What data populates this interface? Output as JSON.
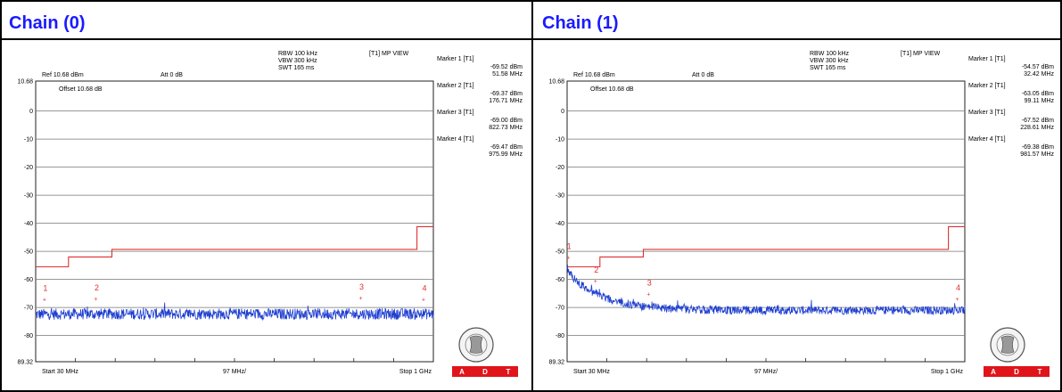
{
  "panels": [
    {
      "title": "Chain (0)",
      "chart_data": {
        "type": "line",
        "header": {
          "ref": "Ref 10.68 dBm",
          "att": "Att  0 dB",
          "rbw": "RBW 100 kHz",
          "vbw": "VBW 300 kHz",
          "swt": "SWT 165 ms",
          "trace": "[T1] MP VIEW",
          "offset": "Offset 10.68 dB"
        },
        "ylim": [
          -89.32,
          10.68
        ],
        "ytick_labels": [
          "10.68",
          "0",
          "-10",
          "-20",
          "-30",
          "-40",
          "-50",
          "-60",
          "-70",
          "-80",
          "89.32"
        ],
        "ytick_values": [
          10.68,
          0,
          -10,
          -20,
          -30,
          -40,
          -50,
          -60,
          -70,
          -80,
          -89.32
        ],
        "x_start_label": "Start 30 MHz",
        "x_div_label": "97 MHz/",
        "x_stop_label": "Stop 1 GHz",
        "x_range_mhz": [
          30,
          1000
        ],
        "limit_line": [
          [
            30,
            -55.5
          ],
          [
            110,
            -55.5
          ],
          [
            110,
            -52.0
          ],
          [
            216,
            -52.0
          ],
          [
            216,
            -49.3
          ],
          [
            960,
            -49.3
          ],
          [
            960,
            -41.2
          ],
          [
            1000,
            -41.2
          ]
        ],
        "trace_shape": {
          "start_dbm": -72.5,
          "end_dbm": -72.3,
          "decay_mhz": 60,
          "noise_db": 2.0
        },
        "markers": [
          {
            "num": "1",
            "label": "Marker 1 [T1]",
            "value": "-69.52 dBm",
            "freq": "51.58 MHz",
            "freq_mhz": 51.58,
            "dbm": -69.52
          },
          {
            "num": "2",
            "label": "Marker 2 [T1]",
            "value": "-69.37 dBm",
            "freq": "176.71 MHz",
            "freq_mhz": 176.71,
            "dbm": -69.37
          },
          {
            "num": "3",
            "label": "Marker 3 [T1]",
            "value": "-69.00 dBm",
            "freq": "822.73 MHz",
            "freq_mhz": 822.73,
            "dbm": -69.0
          },
          {
            "num": "4",
            "label": "Marker 4 [T1]",
            "value": "-69.47 dBm",
            "freq": "975.99 MHz",
            "freq_mhz": 975.99,
            "dbm": -69.47
          }
        ],
        "logo_text": [
          "A",
          "D",
          "T"
        ],
        "colors": {
          "trace": "#1f3fd0",
          "limit": "#e03030",
          "grid": "#777777",
          "logo": "#e0151b"
        }
      }
    },
    {
      "title": "Chain (1)",
      "chart_data": {
        "type": "line",
        "header": {
          "ref": "Ref 10.68 dBm",
          "att": "Att  0 dB",
          "rbw": "RBW 100 kHz",
          "vbw": "VBW 300 kHz",
          "swt": "SWT 165 ms",
          "trace": "[T1] MP VIEW",
          "offset": "Offset 10.68 dB"
        },
        "ylim": [
          -89.32,
          10.68
        ],
        "ytick_labels": [
          "10.68",
          "0",
          "-10",
          "-20",
          "-30",
          "-40",
          "-50",
          "-60",
          "-70",
          "-80",
          "89.32"
        ],
        "ytick_values": [
          10.68,
          0,
          -10,
          -20,
          -30,
          -40,
          -50,
          -60,
          -70,
          -80,
          -89.32
        ],
        "x_start_label": "Start 30 MHz",
        "x_div_label": "97 MHz/",
        "x_stop_label": "Stop 1 GHz",
        "x_range_mhz": [
          30,
          1000
        ],
        "limit_line": [
          [
            30,
            -55.5
          ],
          [
            110,
            -55.5
          ],
          [
            110,
            -52.0
          ],
          [
            216,
            -52.0
          ],
          [
            216,
            -49.3
          ],
          [
            960,
            -49.3
          ],
          [
            960,
            -41.2
          ],
          [
            1000,
            -41.2
          ]
        ],
        "trace_shape": {
          "start_dbm": -57.0,
          "end_dbm": -71.0,
          "decay_mhz": 80,
          "noise_db": 1.5
        },
        "markers": [
          {
            "num": "1",
            "label": "Marker 1 [T1]",
            "value": "-54.57 dBm",
            "freq": "32.42 MHz",
            "freq_mhz": 32.42,
            "dbm": -54.57
          },
          {
            "num": "2",
            "label": "Marker 2 [T1]",
            "value": "-63.05 dBm",
            "freq": "99.11 MHz",
            "freq_mhz": 99.11,
            "dbm": -63.05
          },
          {
            "num": "3",
            "label": "Marker 3 [T1]",
            "value": "-67.52 dBm",
            "freq": "228.61 MHz",
            "freq_mhz": 228.61,
            "dbm": -67.52
          },
          {
            "num": "4",
            "label": "Marker 4 [T1]",
            "value": "-69.38 dBm",
            "freq": "981.57 MHz",
            "freq_mhz": 981.57,
            "dbm": -69.38
          }
        ],
        "logo_text": [
          "A",
          "D",
          "T"
        ],
        "colors": {
          "trace": "#1f3fd0",
          "limit": "#e03030",
          "grid": "#777777",
          "logo": "#e0151b"
        }
      }
    }
  ]
}
